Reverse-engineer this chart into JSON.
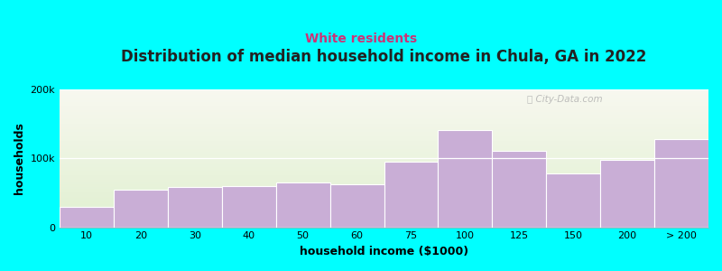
{
  "title": "Distribution of median household income in Chula, GA in 2022",
  "subtitle": "White residents",
  "xlabel": "household income ($1000)",
  "ylabel": "households",
  "background_color": "#00FFFF",
  "bar_color": "#c9aed6",
  "bar_edge_color": "#ffffff",
  "ylim": [
    0,
    200000
  ],
  "yticks": [
    0,
    100000,
    200000
  ],
  "ytick_labels": [
    "0",
    "100k",
    "200k"
  ],
  "categories": [
    "10",
    "20",
    "30",
    "40",
    "50",
    "60",
    "75",
    "100",
    "125",
    "150",
    "200",
    "> 200"
  ],
  "values": [
    30000,
    55000,
    58000,
    60000,
    65000,
    62000,
    95000,
    140000,
    110000,
    78000,
    98000,
    128000
  ],
  "title_fontsize": 12,
  "subtitle_fontsize": 10,
  "subtitle_color": "#cc3377",
  "axis_label_fontsize": 9,
  "tick_fontsize": 8,
  "gradient_top_color": "#e0f0d0",
  "gradient_bottom_color": "#f8f8f0"
}
